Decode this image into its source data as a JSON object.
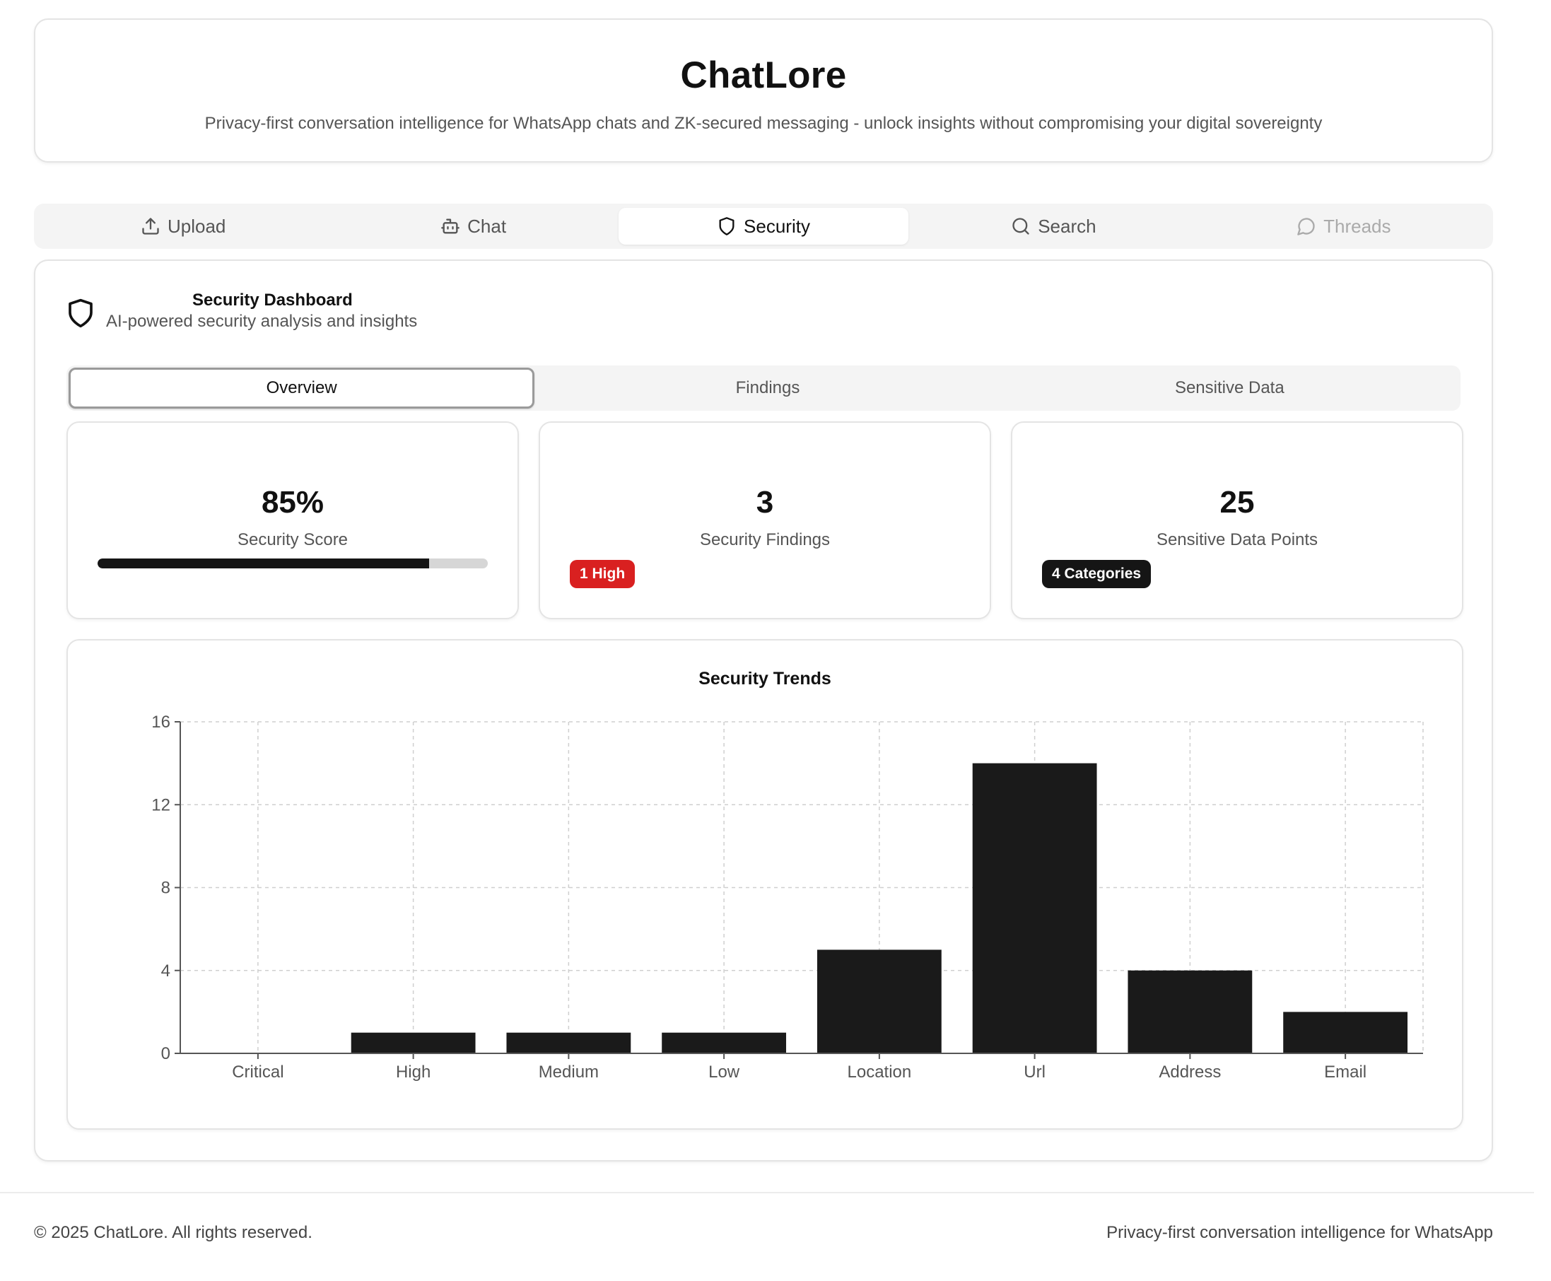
{
  "header": {
    "title": "ChatLore",
    "subtitle": "Privacy-first conversation intelligence for WhatsApp chats and ZK-secured messaging - unlock insights without compromising your digital sovereignty"
  },
  "tabs": [
    {
      "label": "Upload",
      "icon": "upload-icon",
      "state": "normal"
    },
    {
      "label": "Chat",
      "icon": "bot-icon",
      "state": "normal"
    },
    {
      "label": "Security",
      "icon": "shield-icon",
      "state": "active"
    },
    {
      "label": "Search",
      "icon": "search-icon",
      "state": "normal"
    },
    {
      "label": "Threads",
      "icon": "message-circle-icon",
      "state": "disabled"
    }
  ],
  "dashboard": {
    "title": "Security Dashboard",
    "subtitle": "AI-powered security analysis and insights",
    "icon": "shield-icon",
    "subtabs": [
      {
        "label": "Overview",
        "active": true
      },
      {
        "label": "Findings",
        "active": false
      },
      {
        "label": "Sensitive Data",
        "active": false
      }
    ],
    "stats": {
      "score": {
        "value": "85%",
        "label": "Security Score",
        "progress": 0.85
      },
      "findings": {
        "value": "3",
        "label": "Security Findings",
        "badge": "1 High",
        "badge_color": "#d92020"
      },
      "sensitive": {
        "value": "25",
        "label": "Sensitive Data Points",
        "badge": "4 Categories",
        "badge_color": "#151515"
      }
    }
  },
  "chart_data": {
    "type": "bar",
    "title": "Security Trends",
    "categories": [
      "Critical",
      "High",
      "Medium",
      "Low",
      "Location",
      "Url",
      "Address",
      "Email"
    ],
    "values": [
      0,
      1,
      1,
      1,
      5,
      14,
      4,
      2
    ],
    "ylim": [
      0,
      16
    ],
    "yticks": [
      0,
      4,
      8,
      12,
      16
    ],
    "grid": true,
    "bar_color": "#1a1a1a"
  },
  "footer": {
    "left": "© 2025 ChatLore. All rights reserved.",
    "right": "Privacy-first conversation intelligence for WhatsApp"
  }
}
